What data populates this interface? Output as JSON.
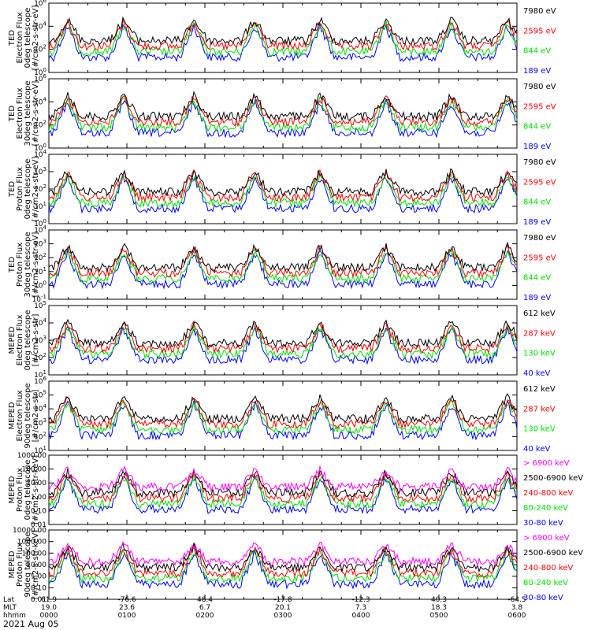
{
  "date_label": "2021 Aug 05",
  "colors": {
    "black": "#000000",
    "red": "#ff0000",
    "green": "#00e000",
    "blue": "#0000ff",
    "magenta": "#ff00ff"
  },
  "footer": {
    "rows": [
      {
        "label": "Lat",
        "values": [
          "61.9",
          "-76.6",
          "48.4",
          "-17.8",
          "-12.3",
          "40.3",
          "-64.5"
        ]
      },
      {
        "label": "MLT",
        "values": [
          "19.0",
          "23.6",
          "6.7",
          "20.1",
          "7.3",
          "18.3",
          "3.8"
        ]
      },
      {
        "label": "hhmm",
        "values": [
          "0000",
          "0100",
          "0200",
          "0300",
          "0400",
          "0500",
          "0600"
        ]
      }
    ]
  },
  "chart_data": [
    {
      "type": "line",
      "ylabel": [
        "TED",
        "Electron Flux",
        "0deg telescope",
        "[#/cm2-s-str-eV]"
      ],
      "yticks": [
        "10^6",
        "10^4",
        "10^2",
        "10^0"
      ],
      "ylim_log10": [
        0,
        6
      ],
      "channels": [
        {
          "name": "7980 eV",
          "color": "black"
        },
        {
          "name": "2595 eV",
          "color": "red"
        },
        {
          "name": "844 eV",
          "color": "green"
        },
        {
          "name": "189 eV",
          "color": "blue"
        }
      ]
    },
    {
      "type": "line",
      "ylabel": [
        "TED",
        "Electron Flux",
        "30deg telescope",
        "[#/cm2-s-str-eV]"
      ],
      "yticks": [
        "10^6",
        "10^4",
        "10^2",
        "10^0"
      ],
      "ylim_log10": [
        0,
        6
      ],
      "channels": [
        {
          "name": "7980 eV",
          "color": "black"
        },
        {
          "name": "2595 eV",
          "color": "red"
        },
        {
          "name": "844 eV",
          "color": "green"
        },
        {
          "name": "189 eV",
          "color": "blue"
        }
      ]
    },
    {
      "type": "line",
      "ylabel": [
        "TED",
        "Proton Flux",
        "0deg telescope",
        "[#/cm2-s-str-eV]"
      ],
      "yticks": [
        "10^4",
        "10^3",
        "10^2",
        "10^1",
        "10^0"
      ],
      "ylim_log10": [
        0,
        4
      ],
      "channels": [
        {
          "name": "7980 eV",
          "color": "black"
        },
        {
          "name": "2595 eV",
          "color": "red"
        },
        {
          "name": "844 eV",
          "color": "green"
        },
        {
          "name": "189 eV",
          "color": "blue"
        }
      ]
    },
    {
      "type": "line",
      "ylabel": [
        "TED",
        "Proton Flux",
        "30deg telescope",
        "[#/cm2-s-str-eV]"
      ],
      "yticks": [
        "10^4",
        "10^3",
        "10^2",
        "10^1",
        "10^0",
        "10^-1"
      ],
      "ylim_log10": [
        -1,
        4
      ],
      "channels": [
        {
          "name": "7980 eV",
          "color": "black"
        },
        {
          "name": "2595 eV",
          "color": "red"
        },
        {
          "name": "844 eV",
          "color": "green"
        },
        {
          "name": "189 eV",
          "color": "blue"
        }
      ]
    },
    {
      "type": "line",
      "ylabel": [
        "MEPED",
        "Electron Flux",
        "0deg telescope",
        "[#/cm2-s-str]"
      ],
      "yticks": [
        "10^5",
        "10^4",
        "10^3",
        "10^2",
        "10^1"
      ],
      "ylim_log10": [
        1,
        5
      ],
      "channels": [
        {
          "name": "612 keV",
          "color": "black"
        },
        {
          "name": "287 keV",
          "color": "red"
        },
        {
          "name": "130 keV",
          "color": "green"
        },
        {
          "name": "40 keV",
          "color": "blue"
        }
      ]
    },
    {
      "type": "line",
      "ylabel": [
        "MEPED",
        "Electron Flux",
        "90deg telescope",
        "[#/cm2-s-str]"
      ],
      "yticks": [
        "10^6",
        "10^5",
        "10^4",
        "10^3",
        "10^2",
        "10^1"
      ],
      "ylim_log10": [
        1,
        6
      ],
      "channels": [
        {
          "name": "612 keV",
          "color": "black"
        },
        {
          "name": "287 keV",
          "color": "red"
        },
        {
          "name": "130 keV",
          "color": "green"
        },
        {
          "name": "40 keV",
          "color": "blue"
        }
      ]
    },
    {
      "type": "line",
      "ylabel": [
        "MEPED",
        "Proton Flux",
        "0deg telescope",
        "[#/cm2-s-str-keV]"
      ],
      "yticks": [
        "1000.00",
        "100.00",
        "10.00",
        "1.00",
        "0.10",
        "0.01"
      ],
      "ylim_log10": [
        -2,
        3
      ],
      "channels": [
        {
          "name": "> 6900 keV",
          "color": "magenta"
        },
        {
          "name": "2500-6900 keV",
          "color": "black"
        },
        {
          "name": "240-800 keV",
          "color": "red"
        },
        {
          "name": "80-240 keV",
          "color": "green"
        },
        {
          "name": "30-80 keV",
          "color": "blue"
        }
      ]
    },
    {
      "type": "line",
      "ylabel": [
        "MEPED",
        "Proton Flux",
        "90deg telescope",
        "[#/cm2-s-str-keV]"
      ],
      "yticks": [
        "10000.00",
        "1000.00",
        "100.00",
        "10.00",
        "1.00",
        "0.10",
        "0.01"
      ],
      "ylim_log10": [
        -2,
        4
      ],
      "channels": [
        {
          "name": "> 6900 keV",
          "color": "magenta"
        },
        {
          "name": "2500-6900 keV",
          "color": "black"
        },
        {
          "name": "240-800 keV",
          "color": "red"
        },
        {
          "name": "80-240 keV",
          "color": "green"
        },
        {
          "name": "30-80 keV",
          "color": "blue"
        }
      ]
    }
  ]
}
